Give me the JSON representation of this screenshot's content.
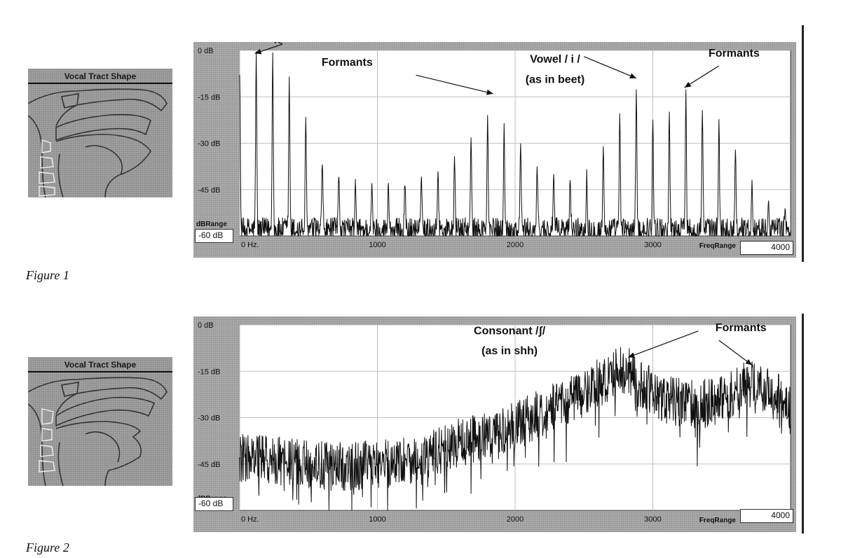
{
  "figures": [
    {
      "caption": "Figure 1",
      "vocal_tract": {
        "title": "Vocal Tract Shape",
        "shape": "vowel-i"
      },
      "db_range_label": "dBRange",
      "db_range_value": "-60 dB",
      "freq_range_label": "FreqRange",
      "freq_range_value": "4000"
    },
    {
      "caption": "Figure 2",
      "vocal_tract": {
        "title": "Vocal Tract Shape",
        "shape": "consonant-sh"
      },
      "db_range_label": "dBRange",
      "db_range_value": "-60 dB",
      "freq_range_label": "FreqRange",
      "freq_range_value": "4000"
    }
  ],
  "chart_data": [
    {
      "type": "line",
      "x_ticks": [
        {
          "value": 0,
          "label": "0 Hz."
        },
        {
          "value": 1000,
          "label": "1000"
        },
        {
          "value": 2000,
          "label": "2000"
        },
        {
          "value": 3000,
          "label": "3000"
        }
      ],
      "y_ticks": [
        {
          "value": 0,
          "label": "0 dB"
        },
        {
          "value": -15,
          "label": "-15 dB"
        },
        {
          "value": -30,
          "label": "-30 dB"
        },
        {
          "value": -45,
          "label": "-45 dB"
        }
      ],
      "xlim": [
        0,
        4000
      ],
      "ylim": [
        -60,
        0
      ],
      "grid": true,
      "spectrum_kind": "harmonic",
      "fundamental_hz": 120,
      "envelope": [
        [
          0,
          -6
        ],
        [
          150,
          -1
        ],
        [
          250,
          0
        ],
        [
          400,
          -12
        ],
        [
          600,
          -35
        ],
        [
          900,
          -45
        ],
        [
          1200,
          -42
        ],
        [
          1500,
          -36
        ],
        [
          1750,
          -25
        ],
        [
          1850,
          -18
        ],
        [
          1950,
          -25
        ],
        [
          2200,
          -40
        ],
        [
          2500,
          -42
        ],
        [
          2650,
          -30
        ],
        [
          2800,
          -16
        ],
        [
          2870,
          -10
        ],
        [
          3000,
          -22
        ],
        [
          3150,
          -18
        ],
        [
          3250,
          -14
        ],
        [
          3350,
          -18
        ],
        [
          3450,
          -20
        ],
        [
          3550,
          -26
        ],
        [
          3650,
          -40
        ],
        [
          3800,
          -48
        ],
        [
          4000,
          -52
        ]
      ],
      "labels": [
        {
          "text": "Formants",
          "x": 780,
          "y": -5.0
        },
        {
          "text": "Vowel / i /",
          "x": 2290,
          "y": -4.0
        },
        {
          "text": "(as in beet)",
          "x": 2290,
          "y": -10.5
        },
        {
          "text": "Formants",
          "x": 3590,
          "y": -2.0
        }
      ],
      "arrows": [
        {
          "from": [
            310,
            2.0
          ],
          "to": [
            110,
            -1.0
          ]
        },
        {
          "from": [
            310,
            2.0
          ],
          "to": [
            230,
            4.0
          ]
        },
        {
          "from": [
            1280,
            -8.0
          ],
          "to": [
            1840,
            -14.0
          ]
        },
        {
          "from": [
            2500,
            -2.0
          ],
          "to": [
            2880,
            -9.0
          ]
        },
        {
          "from": [
            3480,
            -5.0
          ],
          "to": [
            3230,
            -12.0
          ]
        }
      ]
    },
    {
      "type": "line",
      "x_ticks": [
        {
          "value": 0,
          "label": "0 Hz."
        },
        {
          "value": 1000,
          "label": "1000"
        },
        {
          "value": 2000,
          "label": "2000"
        },
        {
          "value": 3000,
          "label": "3000"
        }
      ],
      "y_ticks": [
        {
          "value": 0,
          "label": "0 dB"
        },
        {
          "value": -15,
          "label": "-15 dB"
        },
        {
          "value": -30,
          "label": "-30 dB"
        },
        {
          "value": -45,
          "label": "-45 dB"
        }
      ],
      "xlim": [
        0,
        4000
      ],
      "ylim": [
        -60,
        0
      ],
      "grid": true,
      "spectrum_kind": "noise",
      "envelope": [
        [
          0,
          -43
        ],
        [
          300,
          -44
        ],
        [
          700,
          -46
        ],
        [
          1000,
          -45
        ],
        [
          1300,
          -43
        ],
        [
          1600,
          -38
        ],
        [
          2000,
          -33
        ],
        [
          2200,
          -28
        ],
        [
          2500,
          -22
        ],
        [
          2700,
          -16
        ],
        [
          2800,
          -14
        ],
        [
          2900,
          -19
        ],
        [
          3100,
          -24
        ],
        [
          3300,
          -26
        ],
        [
          3500,
          -24
        ],
        [
          3700,
          -19
        ],
        [
          3850,
          -22
        ],
        [
          4000,
          -26
        ]
      ],
      "labels": [
        {
          "text": "Consonant /ʃ/",
          "x": 1960,
          "y": -3.0
        },
        {
          "text": "(as in shh)",
          "x": 1960,
          "y": -9.5
        },
        {
          "text": "Formants",
          "x": 3640,
          "y": -2.0
        }
      ],
      "arrows": [
        {
          "from": [
            3330,
            -2.0
          ],
          "to": [
            2820,
            -10.5
          ]
        },
        {
          "from": [
            3480,
            -5.0
          ],
          "to": [
            3720,
            -13.0
          ]
        }
      ]
    }
  ]
}
